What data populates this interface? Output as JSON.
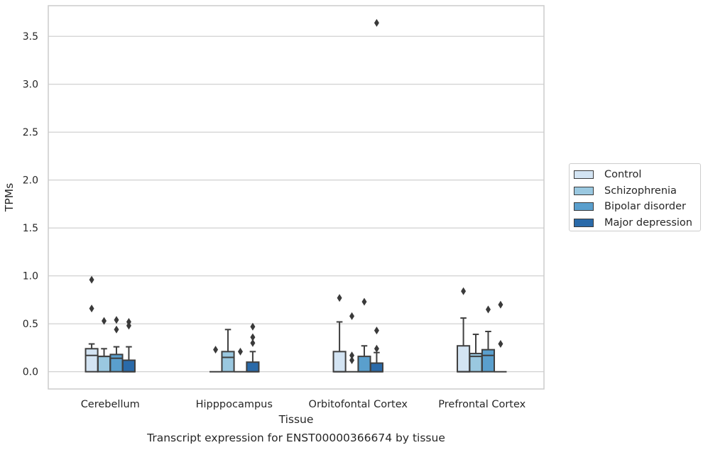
{
  "chart_data": {
    "type": "box",
    "title": "Transcript expression for ENST00000366674 by tissue",
    "xlabel": "Tissue",
    "ylabel": "TPMs",
    "ylim": [
      -0.18,
      3.82
    ],
    "yticks": [
      0.0,
      0.5,
      1.0,
      1.5,
      2.0,
      2.5,
      3.0,
      3.5
    ],
    "ytick_labels": [
      "0.0",
      "0.5",
      "1.0",
      "1.5",
      "2.0",
      "2.5",
      "3.0",
      "3.5"
    ],
    "grid": "horizontal",
    "legend_position": "right",
    "categories": [
      "Cerebellum",
      "Hipppocampus",
      "Orbitofontal Cortex",
      "Prefrontal Cortex"
    ],
    "series": [
      {
        "name": "Control",
        "color": "#d3e4f3",
        "boxes": [
          {
            "whislo": 0.0,
            "q1": 0.0,
            "med": 0.17,
            "q3": 0.24,
            "whishi": 0.29,
            "fliers": [
              0.66,
              0.96
            ]
          },
          {
            "whislo": 0.0,
            "q1": 0.0,
            "med": 0.0,
            "q3": 0.0,
            "whishi": 0.0,
            "fliers": [
              0.23
            ]
          },
          {
            "whislo": 0.0,
            "q1": 0.0,
            "med": 0.0,
            "q3": 0.21,
            "whishi": 0.52,
            "fliers": [
              0.77
            ]
          },
          {
            "whislo": 0.0,
            "q1": 0.0,
            "med": 0.0,
            "q3": 0.27,
            "whishi": 0.56,
            "fliers": [
              0.84
            ]
          }
        ]
      },
      {
        "name": "Schizophrenia",
        "color": "#9ac8e0",
        "boxes": [
          {
            "whislo": 0.0,
            "q1": 0.0,
            "med": 0.16,
            "q3": 0.16,
            "whishi": 0.24,
            "fliers": [
              0.53
            ]
          },
          {
            "whislo": 0.0,
            "q1": 0.0,
            "med": 0.15,
            "q3": 0.21,
            "whishi": 0.44,
            "fliers": []
          },
          {
            "whislo": 0.0,
            "q1": 0.0,
            "med": 0.0,
            "q3": 0.0,
            "whishi": 0.0,
            "fliers": [
              0.12,
              0.17,
              0.58
            ]
          },
          {
            "whislo": 0.0,
            "q1": 0.0,
            "med": 0.16,
            "q3": 0.19,
            "whishi": 0.39,
            "fliers": []
          }
        ]
      },
      {
        "name": "Bipolar disorder",
        "color": "#5a9fcd",
        "boxes": [
          {
            "whislo": 0.0,
            "q1": 0.0,
            "med": 0.14,
            "q3": 0.18,
            "whishi": 0.26,
            "fliers": [
              0.44,
              0.54
            ]
          },
          {
            "whislo": 0.0,
            "q1": 0.0,
            "med": 0.0,
            "q3": 0.0,
            "whishi": 0.0,
            "fliers": [
              0.21
            ]
          },
          {
            "whislo": 0.0,
            "q1": 0.0,
            "med": 0.0,
            "q3": 0.16,
            "whishi": 0.27,
            "fliers": [
              0.73
            ]
          },
          {
            "whislo": 0.0,
            "q1": 0.0,
            "med": 0.17,
            "q3": 0.23,
            "whishi": 0.42,
            "fliers": [
              0.65
            ]
          }
        ]
      },
      {
        "name": "Major depression",
        "color": "#2a6aa9",
        "boxes": [
          {
            "whislo": 0.0,
            "q1": 0.0,
            "med": 0.0,
            "q3": 0.12,
            "whishi": 0.26,
            "fliers": [
              0.48,
              0.52
            ]
          },
          {
            "whislo": 0.0,
            "q1": 0.0,
            "med": 0.0,
            "q3": 0.1,
            "whishi": 0.21,
            "fliers": [
              0.3,
              0.36,
              0.47
            ]
          },
          {
            "whislo": 0.0,
            "q1": 0.0,
            "med": 0.0,
            "q3": 0.09,
            "whishi": 0.2,
            "fliers": [
              0.24,
              0.43,
              3.64
            ]
          },
          {
            "whislo": 0.0,
            "q1": 0.0,
            "med": 0.0,
            "q3": 0.0,
            "whishi": 0.0,
            "fliers": [
              0.29,
              0.7
            ]
          }
        ]
      }
    ]
  }
}
